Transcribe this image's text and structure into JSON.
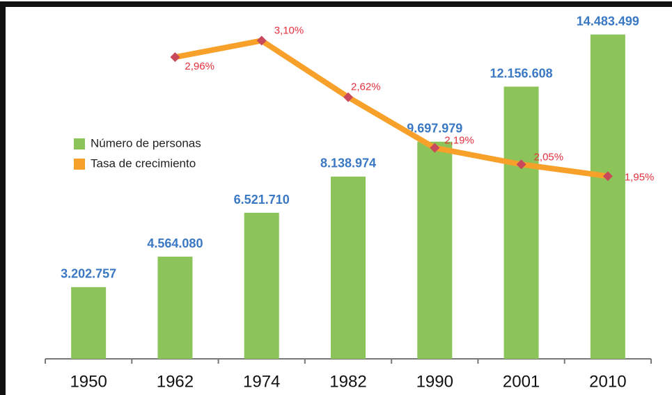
{
  "chart_data": {
    "type": "bar",
    "categories": [
      "1950",
      "1962",
      "1974",
      "1982",
      "1990",
      "2001",
      "2010"
    ],
    "series": [
      {
        "name": "Número de personas",
        "type": "bar",
        "color": "#8cc45a",
        "values": [
          3202757,
          4564080,
          6521710,
          8138974,
          9697979,
          12156608,
          14483499
        ],
        "value_labels": [
          "3.202.757",
          "4.564.080",
          "6.521.710",
          "8.138.974",
          "9.697.979",
          "12.156.608",
          "14.483.499"
        ]
      },
      {
        "name": "Tasa de crecimiento",
        "type": "line",
        "axis": "y2",
        "color": "#f7a12a",
        "marker_color": "#c8495a",
        "values": [
          null,
          2.96,
          3.1,
          2.62,
          2.19,
          2.05,
          1.95
        ],
        "value_labels": [
          null,
          "2,96%",
          "3,10%",
          "2,62%",
          "2,19%",
          "2,05%",
          "1,95%"
        ]
      }
    ],
    "ylim": [
      0,
      15000000
    ],
    "y2lim": [
      0.4,
      3.25
    ],
    "legend": "left"
  }
}
